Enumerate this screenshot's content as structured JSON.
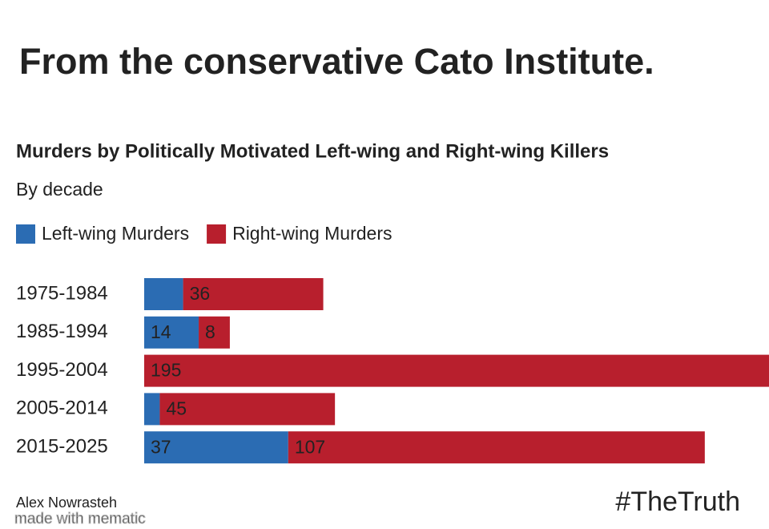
{
  "chart_data": {
    "type": "stacked-bar-horizontal",
    "heading": "From the conservative Cato Institute.",
    "title": "Murders by Politically Motivated Left-wing and Right-wing Killers",
    "subtitle": "By decade",
    "categories": [
      "1975-1984",
      "1985-1994",
      "1995-2004",
      "2005-2014",
      "2015-2025"
    ],
    "series": [
      {
        "name": "Left-wing Murders",
        "color": "#2b6cb3",
        "values": [
          10,
          14,
          0,
          4,
          37
        ]
      },
      {
        "name": "Right-wing Murders",
        "color": "#b81f2d",
        "values": [
          36,
          8,
          195,
          45,
          107
        ]
      }
    ],
    "legend": "top-left",
    "source": "Alex Nowrasteh",
    "hashtag": "#TheTruth",
    "watermark": "made with mematic"
  }
}
